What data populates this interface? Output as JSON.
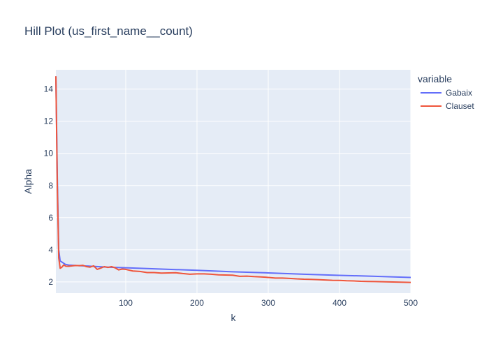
{
  "chart_data": {
    "type": "line",
    "title": "Hill Plot (us_first_name__count)",
    "xlabel": "k",
    "ylabel": "Alpha",
    "xlim": [
      2,
      500
    ],
    "ylim": [
      1.3,
      15.2
    ],
    "xticks": [
      100,
      200,
      300,
      400,
      500
    ],
    "yticks": [
      2,
      4,
      6,
      8,
      10,
      12,
      14
    ],
    "grid": true,
    "legend": {
      "title": "variable",
      "placement": "top-right"
    },
    "series": [
      {
        "name": "Gabaix",
        "color": "#636efa",
        "x": [
          2,
          4,
          6,
          8,
          10,
          15,
          20,
          30,
          40,
          50,
          75,
          100,
          150,
          200,
          250,
          300,
          350,
          400,
          450,
          500
        ],
        "y": [
          14.8,
          8.5,
          4.0,
          3.3,
          3.25,
          3.1,
          3.05,
          3.02,
          3.0,
          2.98,
          2.92,
          2.88,
          2.8,
          2.72,
          2.63,
          2.56,
          2.48,
          2.41,
          2.35,
          2.28
        ]
      },
      {
        "name": "Clauset",
        "color": "#ef553b",
        "x": [
          2,
          4,
          6,
          8,
          10,
          13,
          16,
          20,
          25,
          30,
          35,
          40,
          45,
          50,
          55,
          60,
          65,
          70,
          75,
          80,
          85,
          90,
          95,
          100,
          110,
          120,
          130,
          140,
          150,
          160,
          170,
          180,
          190,
          200,
          210,
          220,
          230,
          240,
          250,
          260,
          270,
          280,
          290,
          300,
          310,
          320,
          330,
          340,
          350,
          360,
          370,
          380,
          390,
          400,
          410,
          420,
          430,
          440,
          450,
          460,
          470,
          480,
          490,
          500
        ],
        "y": [
          14.8,
          8.0,
          3.5,
          2.85,
          2.9,
          3.05,
          2.98,
          2.97,
          3.0,
          3.02,
          3.01,
          3.03,
          2.95,
          2.92,
          3.0,
          2.78,
          2.86,
          2.95,
          2.9,
          2.95,
          2.88,
          2.75,
          2.8,
          2.78,
          2.68,
          2.65,
          2.58,
          2.58,
          2.55,
          2.56,
          2.57,
          2.52,
          2.48,
          2.5,
          2.5,
          2.48,
          2.44,
          2.43,
          2.42,
          2.35,
          2.36,
          2.33,
          2.31,
          2.28,
          2.24,
          2.24,
          2.22,
          2.19,
          2.17,
          2.16,
          2.14,
          2.12,
          2.1,
          2.09,
          2.07,
          2.06,
          2.04,
          2.03,
          2.02,
          2.01,
          2.0,
          1.99,
          1.98,
          1.97
        ]
      }
    ]
  }
}
